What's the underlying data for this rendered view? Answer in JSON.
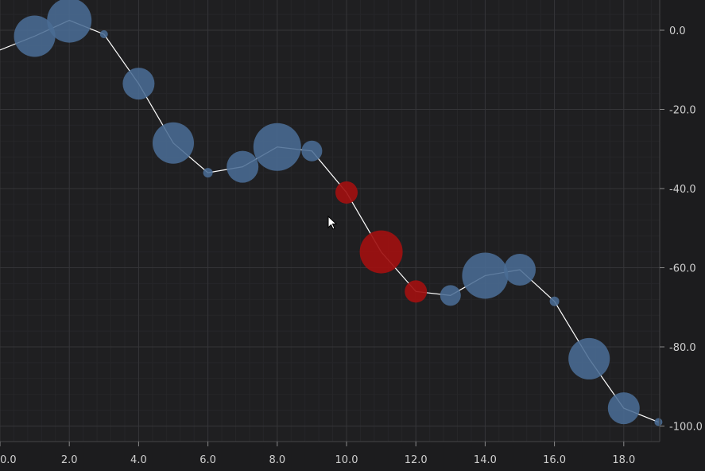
{
  "chart_data": {
    "type": "scatter",
    "title": "",
    "xlabel": "",
    "ylabel": "",
    "xlim": [
      0,
      19
    ],
    "ylim": [
      -103,
      7
    ],
    "x_ticks": [
      "0.0",
      "2.0",
      "4.0",
      "6.0",
      "8.0",
      "10.0",
      "12.0",
      "14.0",
      "16.0",
      "18.0"
    ],
    "y_ticks": [
      "0.0",
      "-20.0",
      "-40.0",
      "-60.0",
      "-80.0",
      "-100.0"
    ],
    "grid": true,
    "series": [
      {
        "type": "line",
        "color": "#ffffff",
        "x": [
          0,
          1,
          2,
          3,
          4,
          5,
          6,
          7,
          8,
          9,
          10,
          11,
          12,
          13,
          14,
          15,
          16,
          17,
          18,
          19
        ],
        "y": [
          -5,
          -1.5,
          2.5,
          -1,
          -13.5,
          -28.5,
          -36,
          -34.5,
          -29.5,
          -30.5,
          -41,
          -56,
          -66,
          -67,
          -62,
          -60.5,
          -68.5,
          -83,
          -95.5,
          -99
        ]
      },
      {
        "type": "bubble",
        "colors": {
          "normal": "#4a6c94",
          "highlight": "#a01010"
        },
        "points": [
          {
            "x": 1,
            "y": -1.5,
            "size": 26,
            "highlight": false
          },
          {
            "x": 2,
            "y": 2.5,
            "size": 28,
            "highlight": false
          },
          {
            "x": 3,
            "y": -1,
            "size": 5,
            "highlight": false
          },
          {
            "x": 4,
            "y": -13.5,
            "size": 20,
            "highlight": false
          },
          {
            "x": 5,
            "y": -28.5,
            "size": 26,
            "highlight": false
          },
          {
            "x": 6,
            "y": -36,
            "size": 6,
            "highlight": false
          },
          {
            "x": 7,
            "y": -34.5,
            "size": 20,
            "highlight": false
          },
          {
            "x": 8,
            "y": -29.5,
            "size": 30,
            "highlight": false
          },
          {
            "x": 9,
            "y": -30.5,
            "size": 13,
            "highlight": false
          },
          {
            "x": 10,
            "y": -41,
            "size": 14,
            "highlight": true
          },
          {
            "x": 11,
            "y": -56,
            "size": 27,
            "highlight": true
          },
          {
            "x": 12,
            "y": -66,
            "size": 14,
            "highlight": true
          },
          {
            "x": 13,
            "y": -67,
            "size": 13,
            "highlight": false
          },
          {
            "x": 14,
            "y": -62,
            "size": 29,
            "highlight": false
          },
          {
            "x": 15,
            "y": -60.5,
            "size": 20,
            "highlight": false
          },
          {
            "x": 16,
            "y": -68.5,
            "size": 6,
            "highlight": false
          },
          {
            "x": 17,
            "y": -83,
            "size": 26,
            "highlight": false
          },
          {
            "x": 18,
            "y": -95.5,
            "size": 20,
            "highlight": false
          },
          {
            "x": 19,
            "y": -99,
            "size": 5,
            "highlight": false
          }
        ]
      }
    ]
  }
}
